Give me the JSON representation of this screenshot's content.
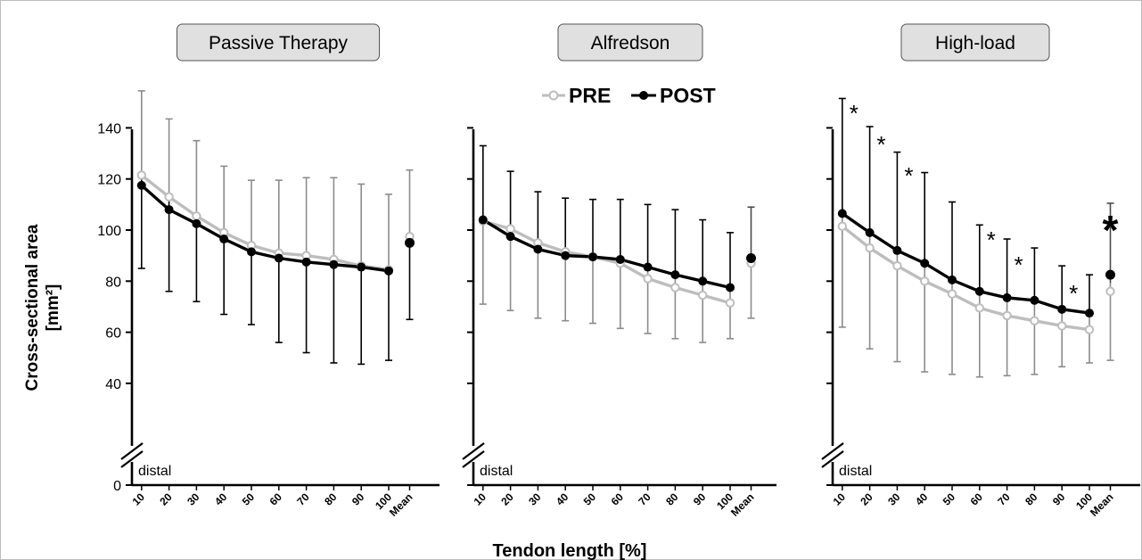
{
  "chart_data": {
    "type": "line",
    "legend": {
      "placement": "top-center",
      "entries": [
        "PRE",
        "POST"
      ]
    },
    "xlabel": "Tendon length [%]",
    "ylabel_line1": "Cross-sectional area",
    "ylabel_line2": "[mm²]",
    "categories": [
      "10",
      "20",
      "30",
      "40",
      "50",
      "60",
      "70",
      "80",
      "90",
      "100",
      "Mean"
    ],
    "y_ticks": [
      "0",
      "40",
      "60",
      "80",
      "100",
      "120",
      "140"
    ],
    "ylim": [
      30,
      155
    ],
    "axis_break": true,
    "colors": {
      "PRE": "#bdbdbd",
      "POST": "#000000",
      "pre_error": "#8c8c8c",
      "post_error": "#000000"
    },
    "panels": [
      {
        "title": "Passive Therapy",
        "distal_label": "distal",
        "series": [
          {
            "name": "PRE",
            "values": [
              121.5,
              113,
              105.5,
              99,
              94,
              91,
              90,
              88.5,
              86,
              84.5
            ],
            "mean": 97.5,
            "err_low": [
              85,
              76,
              72,
              67,
              63,
              56,
              52,
              48,
              47.5,
              49
            ],
            "err_high": [
              154.5,
              143.5,
              135,
              125,
              119.5,
              119.5,
              120.5,
              120.5,
              118,
              114
            ],
            "mean_low": 65,
            "mean_high": 123.5
          },
          {
            "name": "POST",
            "values": [
              117.5,
              108,
              102.5,
              96.5,
              91.5,
              89,
              87.5,
              86.5,
              85.5,
              84
            ],
            "mean": 95
          }
        ],
        "significance": [],
        "mean_significance": ""
      },
      {
        "title": "Alfredson",
        "distal_label": "distal",
        "series": [
          {
            "name": "PRE",
            "values": [
              103.5,
              100.5,
              95,
              91.5,
              89.5,
              87,
              81,
              77.5,
              74.5,
              71.5
            ],
            "mean": 87,
            "err_low": [
              71,
              68.5,
              65.5,
              64.5,
              63.5,
              61.5,
              59.5,
              57.5,
              56,
              57.5
            ],
            "err_high": [
              133,
              123,
              115,
              112.5,
              112,
              112,
              110,
              108,
              104,
              99
            ],
            "mean_low": 65.5,
            "mean_high": 109
          },
          {
            "name": "POST",
            "values": [
              104,
              97.5,
              92.5,
              90,
              89.5,
              88.5,
              85.5,
              82.5,
              80,
              77.5
            ],
            "mean": 89
          }
        ],
        "significance": [],
        "mean_significance": ""
      },
      {
        "title": "High-load",
        "distal_label": "distal",
        "series": [
          {
            "name": "PRE",
            "values": [
              101.5,
              93,
              86,
              80,
              75,
              69.5,
              66.5,
              64.5,
              62.5,
              61
            ],
            "mean": 76,
            "err_low": [
              62,
              53.5,
              48.5,
              44.5,
              43.5,
              42.5,
              43,
              43.5,
              46.5,
              48
            ],
            "err_high": [
              151.5,
              140.5,
              130.5,
              122.5,
              111,
              102,
              96.5,
              93,
              86,
              82.5
            ],
            "mean_low": 49,
            "mean_high": 110.5
          },
          {
            "name": "POST",
            "values": [
              106.5,
              99,
              92,
              87,
              80.5,
              76,
              73.5,
              72.5,
              69,
              67.5
            ],
            "mean": 82.5
          }
        ],
        "significance": [
          "10",
          "20",
          "30",
          "60",
          "70",
          "90"
        ],
        "mean_significance": "*"
      }
    ]
  }
}
